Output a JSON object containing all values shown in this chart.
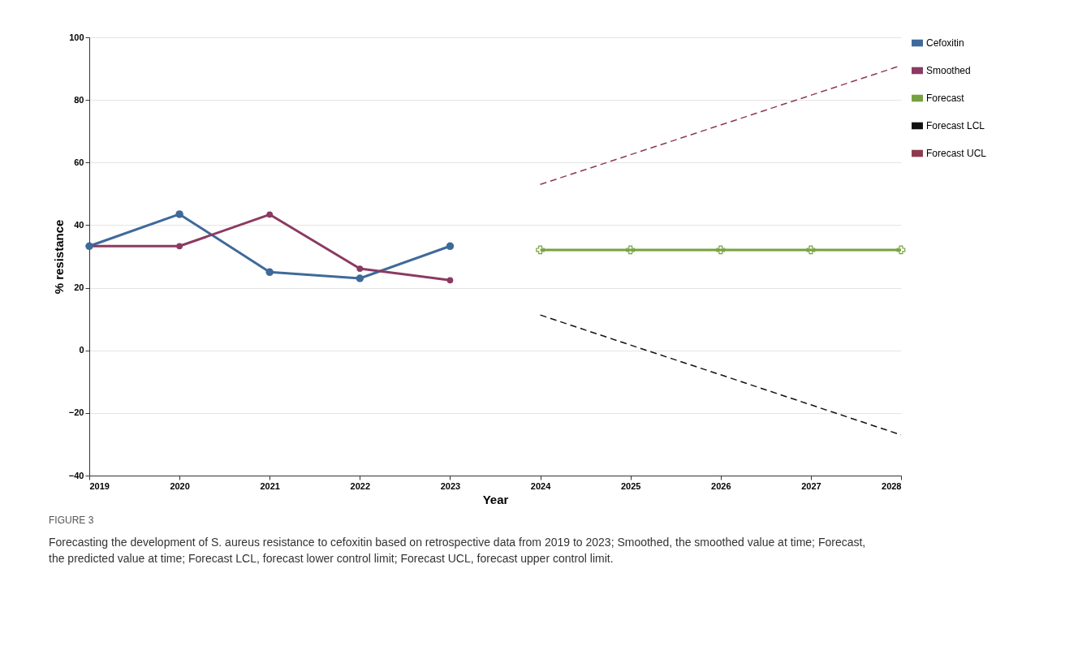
{
  "chart_data": {
    "type": "line",
    "xlabel": "Year",
    "ylabel": "% resistance",
    "x": [
      2019,
      2020,
      2021,
      2022,
      2023,
      2024,
      2025,
      2026,
      2027,
      2028
    ],
    "series": [
      {
        "name": "Cefoxitin",
        "color": "#3e6a9a",
        "marker": "circle",
        "line_style": "solid",
        "values": [
          33.3,
          43.5,
          25,
          23,
          33.3,
          null,
          null,
          null,
          null,
          null
        ]
      },
      {
        "name": "Smoothed",
        "color": "#8b3a62",
        "marker": "circle",
        "line_style": "solid",
        "values": [
          33.3,
          33.3,
          43.4,
          26.1,
          22.4,
          null,
          null,
          null,
          null,
          null
        ]
      },
      {
        "name": "Forecast",
        "color": "#76a140",
        "marker": "cross",
        "line_style": "solid",
        "values": [
          null,
          null,
          null,
          null,
          null,
          32.1,
          32.1,
          32.1,
          32.1,
          32.1
        ]
      },
      {
        "name": "Forecast LCL",
        "color": "#111111",
        "marker": "none",
        "line_style": "dashed",
        "values": [
          null,
          null,
          null,
          null,
          null,
          11.3,
          1.7,
          -7.8,
          -17.4,
          -27
        ]
      },
      {
        "name": "Forecast UCL",
        "color": "#8e3a4e",
        "marker": "none",
        "line_style": "dashed",
        "values": [
          null,
          null,
          null,
          null,
          null,
          53,
          62.5,
          72,
          81.5,
          91
        ]
      }
    ],
    "xlim": [
      2019,
      2028
    ],
    "xticks": [
      2019,
      2020,
      2021,
      2022,
      2023,
      2024,
      2025,
      2026,
      2027,
      2028
    ],
    "ylim": [
      -40,
      100
    ],
    "yticks": [
      -40,
      -20,
      0,
      20,
      40,
      60,
      80,
      100
    ],
    "grid": "y",
    "legend": "right",
    "annotations": [
      "FIGURE 3",
      "Forecasting the development of S. aureus resistance to cefoxitin based on retrospective data from 2019 to 2023; Smoothed, the smoothed value at time; Forecast, the predicted value at time; Forecast LCL, forecast lower control limit; Forecast UCL, forecast upper control limit."
    ]
  }
}
